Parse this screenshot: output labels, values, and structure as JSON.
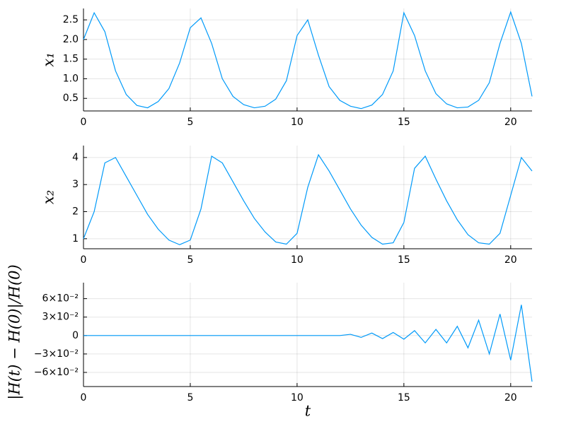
{
  "chart_data": [
    {
      "type": "line",
      "ylabel": "x₁",
      "color": "#009af9",
      "grid": true,
      "x": [
        0,
        0.5,
        1,
        1.5,
        2,
        2.5,
        3,
        3.5,
        4,
        4.5,
        5,
        5.5,
        6,
        6.5,
        7,
        7.5,
        8,
        8.5,
        9,
        9.5,
        10,
        10.5,
        11,
        11.5,
        12,
        12.5,
        13,
        13.5,
        14,
        14.5,
        15,
        15.5,
        16,
        16.5,
        17,
        17.5,
        18,
        18.5,
        19,
        19.5,
        20,
        20.5,
        21
      ],
      "values": [
        2.0,
        2.68,
        2.2,
        1.2,
        0.6,
        0.32,
        0.26,
        0.42,
        0.75,
        1.4,
        2.3,
        2.55,
        1.9,
        1.0,
        0.55,
        0.34,
        0.26,
        0.3,
        0.48,
        0.95,
        2.1,
        2.5,
        1.6,
        0.8,
        0.45,
        0.3,
        0.24,
        0.33,
        0.6,
        1.2,
        2.68,
        2.1,
        1.2,
        0.62,
        0.36,
        0.26,
        0.28,
        0.45,
        0.9,
        1.9,
        2.7,
        1.9,
        0.55
      ],
      "xlim": [
        0,
        21
      ],
      "xticks": [
        0,
        5,
        10,
        15,
        20
      ],
      "ylim": [
        0.18,
        2.79
      ],
      "yticks": [
        0.5,
        {
          "value": 1,
          "label": "1.0"
        },
        1.5,
        {
          "value": 2,
          "label": "2.0"
        },
        2.5
      ]
    },
    {
      "type": "line",
      "ylabel": "x₂",
      "color": "#009af9",
      "grid": true,
      "x": [
        0,
        0.5,
        1,
        1.5,
        2,
        2.5,
        3,
        3.5,
        4,
        4.5,
        5,
        5.5,
        6,
        6.5,
        7,
        7.5,
        8,
        8.5,
        9,
        9.5,
        10,
        10.5,
        11,
        11.5,
        12,
        12.5,
        13,
        13.5,
        14,
        14.5,
        15,
        15.5,
        16,
        16.5,
        17,
        17.5,
        18,
        18.5,
        19,
        19.5,
        20,
        20.5,
        21
      ],
      "values": [
        1.0,
        2.0,
        3.8,
        4.0,
        3.3,
        2.6,
        1.9,
        1.35,
        0.95,
        0.78,
        0.95,
        2.1,
        4.05,
        3.8,
        3.1,
        2.4,
        1.75,
        1.25,
        0.88,
        0.8,
        1.2,
        2.9,
        4.1,
        3.5,
        2.8,
        2.1,
        1.5,
        1.05,
        0.8,
        0.85,
        1.6,
        3.6,
        4.05,
        3.2,
        2.4,
        1.7,
        1.15,
        0.85,
        0.8,
        1.2,
        2.6,
        4.0,
        3.5
      ],
      "xlim": [
        0,
        21
      ],
      "xticks": [
        0,
        5,
        10,
        15,
        20
      ],
      "ylim": [
        0.63,
        4.44
      ],
      "yticks": [
        1,
        2,
        3,
        4
      ]
    },
    {
      "type": "line",
      "ylabel": "|H(t) − H(0)|/H(0)",
      "xlabel": "t",
      "color": "#009af9",
      "grid": true,
      "x": [
        0,
        0.5,
        1,
        1.5,
        2,
        2.5,
        3,
        3.5,
        4,
        4.5,
        5,
        5.5,
        6,
        6.5,
        7,
        7.5,
        8,
        8.5,
        9,
        9.5,
        10,
        10.5,
        11,
        11.5,
        12,
        12.5,
        13,
        13.5,
        14,
        14.5,
        15,
        15.5,
        16,
        16.5,
        17,
        17.5,
        18,
        18.5,
        19,
        19.5,
        20,
        20.5,
        21
      ],
      "values": [
        0,
        0,
        0,
        0,
        0,
        0,
        0,
        0,
        0,
        0,
        0,
        0,
        0,
        0,
        0,
        0,
        0,
        0,
        0,
        0,
        0,
        0,
        0,
        0,
        0,
        0.002,
        -0.003,
        0.004,
        -0.005,
        0.005,
        -0.006,
        0.008,
        -0.012,
        0.01,
        -0.012,
        0.015,
        -0.02,
        0.025,
        -0.03,
        0.035,
        -0.04,
        0.05,
        -0.075
      ],
      "xlim": [
        0,
        21
      ],
      "xticks": [
        0,
        5,
        10,
        15,
        20
      ],
      "ylim": [
        -0.083,
        0.086
      ],
      "yticks": [
        {
          "value": -0.06,
          "label": "−6×10⁻²"
        },
        {
          "value": -0.03,
          "label": "−3×10⁻²"
        },
        0,
        {
          "value": 0.03,
          "label": "3×10⁻²"
        },
        {
          "value": 0.06,
          "label": "6×10⁻²"
        }
      ]
    }
  ]
}
